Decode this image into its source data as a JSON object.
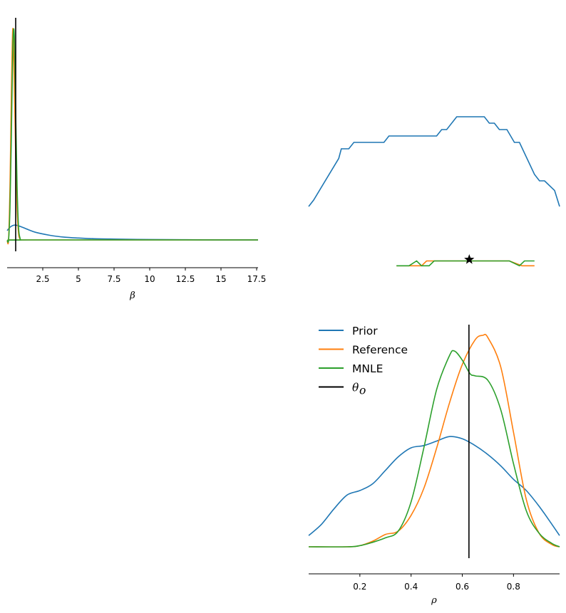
{
  "colors": {
    "prior": "#1f77b4",
    "reference": "#ff7f0e",
    "mnle": "#2ca02c",
    "observed": "#000000"
  },
  "chart_data": [
    {
      "panel": "beta-marginal",
      "type": "line",
      "xlabel": "β",
      "xlim": [
        0,
        17.6
      ],
      "xticks": [
        "2.5",
        "5",
        "7.5",
        "10",
        "12.5",
        "15",
        "17.5"
      ],
      "xtick_values": [
        2.5,
        5,
        7.5,
        10,
        12.5,
        15,
        17.5
      ],
      "observed_x": 0.6,
      "series": [
        {
          "key": "prior",
          "x": [
            0,
            0.2,
            0.4,
            0.6,
            1,
            1.5,
            2,
            3,
            4,
            5,
            6,
            7.5,
            10,
            12.5,
            15,
            17.6
          ],
          "y": [
            0.044,
            0.06,
            0.068,
            0.07,
            0.062,
            0.048,
            0.036,
            0.022,
            0.013,
            0.009,
            0.006,
            0.004,
            0.002,
            0.001,
            0.0005,
            0.0002
          ]
        },
        {
          "key": "reference",
          "x": [
            0,
            0.1,
            0.2,
            0.3,
            0.4,
            0.5,
            0.6,
            0.7,
            0.8,
            0.9,
            1.0,
            1.5,
            17.6
          ],
          "y": [
            0,
            0,
            0.25,
            0.7,
            1.0,
            0.75,
            0.4,
            0.15,
            0.03,
            0.005,
            0,
            0,
            0
          ]
        },
        {
          "key": "mnle",
          "x": [
            0,
            0.1,
            0.2,
            0.3,
            0.4,
            0.5,
            0.6,
            0.7,
            0.8,
            0.9,
            1.0,
            1.5,
            17.6
          ],
          "y": [
            0,
            0,
            0.15,
            0.5,
            0.92,
            0.97,
            0.6,
            0.25,
            0.06,
            0.01,
            0,
            0,
            0
          ]
        }
      ]
    },
    {
      "panel": "beta-rho-joint",
      "type": "line",
      "series": [
        {
          "key": "prior",
          "x": [
            0,
            0.02,
            0.12,
            0.13,
            0.16,
            0.18,
            0.3,
            0.32,
            0.51,
            0.53,
            0.55,
            0.59,
            0.7,
            0.72,
            0.74,
            0.76,
            0.79,
            0.82,
            0.84,
            0.9,
            0.92,
            0.94,
            0.98,
            1.0
          ],
          "y": [
            0.2,
            0.22,
            0.35,
            0.38,
            0.38,
            0.4,
            0.4,
            0.42,
            0.42,
            0.44,
            0.44,
            0.48,
            0.48,
            0.46,
            0.46,
            0.44,
            0.44,
            0.4,
            0.4,
            0.3,
            0.28,
            0.28,
            0.25,
            0.2
          ]
        },
        {
          "key": "reference",
          "x": [
            0.35,
            0.45,
            0.47,
            0.5,
            0.6,
            0.7,
            0.8,
            0.85,
            0.9
          ],
          "y": [
            0.015,
            0.015,
            0.03,
            0.03,
            0.03,
            0.03,
            0.03,
            0.015,
            0.015
          ]
        },
        {
          "key": "mnle",
          "x": [
            0.35,
            0.4,
            0.43,
            0.45,
            0.48,
            0.5,
            0.6,
            0.7,
            0.8,
            0.84,
            0.86,
            0.9
          ],
          "y": [
            0.015,
            0.015,
            0.03,
            0.015,
            0.015,
            0.03,
            0.03,
            0.03,
            0.03,
            0.015,
            0.03,
            0.03
          ]
        }
      ],
      "observed_marker": {
        "x": 0.64,
        "y": 0.03
      }
    },
    {
      "panel": "rho-marginal",
      "type": "line",
      "xlabel": "ρ",
      "xlim": [
        0,
        0.98
      ],
      "xticks": [
        "0.2",
        "0.4",
        "0.6",
        "0.8"
      ],
      "xtick_values": [
        0.2,
        0.4,
        0.6,
        0.8
      ],
      "observed_x": 0.626,
      "series": [
        {
          "key": "prior",
          "x": [
            0,
            0.05,
            0.1,
            0.15,
            0.2,
            0.25,
            0.3,
            0.35,
            0.4,
            0.45,
            0.5,
            0.55,
            0.6,
            0.65,
            0.7,
            0.75,
            0.8,
            0.85,
            0.9,
            0.95,
            0.98
          ],
          "y": [
            0.05,
            0.1,
            0.17,
            0.23,
            0.25,
            0.28,
            0.34,
            0.4,
            0.44,
            0.45,
            0.47,
            0.49,
            0.48,
            0.45,
            0.41,
            0.36,
            0.3,
            0.25,
            0.18,
            0.1,
            0.05
          ]
        },
        {
          "key": "reference",
          "x": [
            0,
            0.15,
            0.2,
            0.25,
            0.3,
            0.35,
            0.4,
            0.45,
            0.5,
            0.55,
            0.6,
            0.65,
            0.68,
            0.7,
            0.75,
            0.8,
            0.85,
            0.9,
            0.95,
            0.98
          ],
          "y": [
            0,
            0,
            0.005,
            0.025,
            0.055,
            0.07,
            0.14,
            0.26,
            0.44,
            0.64,
            0.81,
            0.92,
            0.94,
            0.93,
            0.8,
            0.51,
            0.21,
            0.06,
            0.01,
            0
          ]
        },
        {
          "key": "mnle",
          "x": [
            0,
            0.15,
            0.2,
            0.25,
            0.3,
            0.35,
            0.4,
            0.45,
            0.5,
            0.55,
            0.57,
            0.6,
            0.63,
            0.65,
            0.7,
            0.75,
            0.8,
            0.85,
            0.9,
            0.95,
            0.98
          ],
          "y": [
            0,
            0,
            0.005,
            0.02,
            0.04,
            0.07,
            0.2,
            0.44,
            0.7,
            0.85,
            0.87,
            0.83,
            0.77,
            0.76,
            0.74,
            0.61,
            0.37,
            0.16,
            0.06,
            0.015,
            0
          ]
        }
      ]
    }
  ],
  "legend": [
    {
      "key": "prior",
      "label": "Prior"
    },
    {
      "key": "reference",
      "label": "Reference"
    },
    {
      "key": "mnle",
      "label": "MNLE"
    },
    {
      "key": "observed",
      "label": "θ",
      "subscript": "o"
    }
  ]
}
